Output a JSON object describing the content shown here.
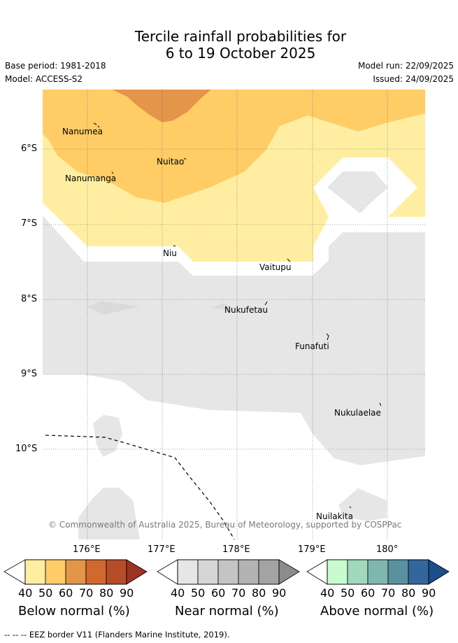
{
  "title_line1": "Tercile rainfall probabilities for",
  "title_line2": "6 to 19 October 2025",
  "base_period": "Base period: 1981-2018",
  "model": "Model: ACCESS-S2",
  "model_run": "Model run: 22/09/2025",
  "issued": "Issued: 24/09/2025",
  "copyright": "© Commonwealth of Australia 2025, Bureau of Meteorology, supported by COSPPac",
  "lat_labels": [
    "6°S",
    "7°S",
    "8°S",
    "9°S",
    "10°S"
  ],
  "lon_labels": [
    "176°E",
    "177°E",
    "178°E",
    "179°E",
    "180°"
  ],
  "places": [
    "Nanumea",
    "Nuitao",
    "Nanumanga",
    "Niu",
    "Vaitupu",
    "Nukufetau",
    "Funafuti",
    "Nukulaelae",
    "Nuilakita"
  ],
  "colorbars": [
    {
      "title": "Below normal (%)",
      "ticks": [
        "40",
        "50",
        "60",
        "70",
        "80",
        "90"
      ],
      "colors": [
        "#ffeea1",
        "#ffcc66",
        "#e3954a",
        "#d1682f",
        "#b54d29",
        "#9e3221"
      ]
    },
    {
      "title": "Near normal (%)",
      "ticks": [
        "40",
        "50",
        "60",
        "70",
        "80",
        "90"
      ],
      "colors": [
        "#e6e6e6",
        "#d6d6d6",
        "#c4c4c4",
        "#b3b3b3",
        "#a3a3a3",
        "#8c8c8c"
      ]
    },
    {
      "title": "Above normal (%)",
      "ticks": [
        "40",
        "50",
        "60",
        "70",
        "80",
        "90"
      ],
      "colors": [
        "#c8fcd0",
        "#a0d9bc",
        "#80b6b0",
        "#5991a0",
        "#33669c",
        "#1a4f8a"
      ]
    }
  ],
  "eez_note": "-- -- -- EEZ border V11 (Flanders Marine Institute, 2019)."
}
